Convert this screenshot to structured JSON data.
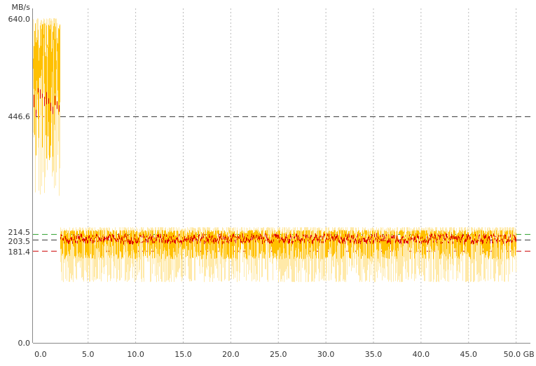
{
  "chart_data": {
    "type": "line",
    "y_unit": "MB/s",
    "x_unit": "GB",
    "xlim": [
      -0.8,
      51.5
    ],
    "ylim": [
      0.0,
      640.0
    ],
    "x_ticks": [
      "0.0",
      "5.0",
      "10.0",
      "15.0",
      "20.0",
      "25.0",
      "30.0",
      "35.0",
      "40.0",
      "45.0",
      "50.0 GB"
    ],
    "x_tick_values": [
      0,
      5,
      10,
      15,
      20,
      25,
      30,
      35,
      40,
      45,
      50
    ],
    "y_tick_labels": [
      {
        "label": "640.0",
        "value": 640.0,
        "color": "#333333"
      },
      {
        "label": "446.6",
        "value": 446.6,
        "color": "#333333"
      },
      {
        "label": "214.5",
        "value": 214.5,
        "color": "#2ca02c"
      },
      {
        "label": "203.5",
        "value": 203.5,
        "color": "#333333"
      },
      {
        "label": "181.4",
        "value": 181.4,
        "color": "#cc0000"
      },
      {
        "label": "0.0",
        "value": 0.0,
        "color": "#333333"
      }
    ],
    "reference_lines": [
      {
        "value": 446.6,
        "color": "#333333",
        "style": "dashed",
        "scope": "full"
      },
      {
        "value": 214.5,
        "color": "#2ca02c",
        "style": "dashed",
        "scope": "full"
      },
      {
        "value": 203.5,
        "color": "#333333",
        "style": "dashed",
        "scope": "full"
      },
      {
        "value": 181.4,
        "color": "#cc0000",
        "style": "dashed",
        "scope": "full"
      },
      {
        "value": 446.6,
        "color": "#cc0000",
        "style": "dashed",
        "scope": "x-range",
        "x_range": [
          -0.8,
          2.0
        ]
      }
    ],
    "series": [
      {
        "color": "#ffe9a8",
        "role": "raw-min-max",
        "segments": [
          {
            "x_range": [
              -0.8,
              2.0
            ],
            "low": 290,
            "high": 640
          },
          {
            "x_range": [
              2.0,
              50.0
            ],
            "low": 120,
            "high": 228
          }
        ]
      },
      {
        "color": "#ffc000",
        "role": "smoothed",
        "segments": [
          {
            "x_range": [
              -0.8,
              2.0
            ],
            "low": 360,
            "high": 630
          },
          {
            "x_range": [
              2.0,
              50.0
            ],
            "low": 165,
            "high": 222
          }
        ]
      },
      {
        "color": "#dd0000",
        "role": "average",
        "segments": [
          {
            "x_range": [
              -0.8,
              2.0
            ],
            "low": 410,
            "high": 520
          },
          {
            "x_range": [
              2.0,
              50.0
            ],
            "low": 185,
            "high": 220
          }
        ]
      }
    ],
    "grid": {
      "vertical": true,
      "horizontal": false,
      "style": "dotted",
      "color": "#bbbbbb"
    }
  }
}
